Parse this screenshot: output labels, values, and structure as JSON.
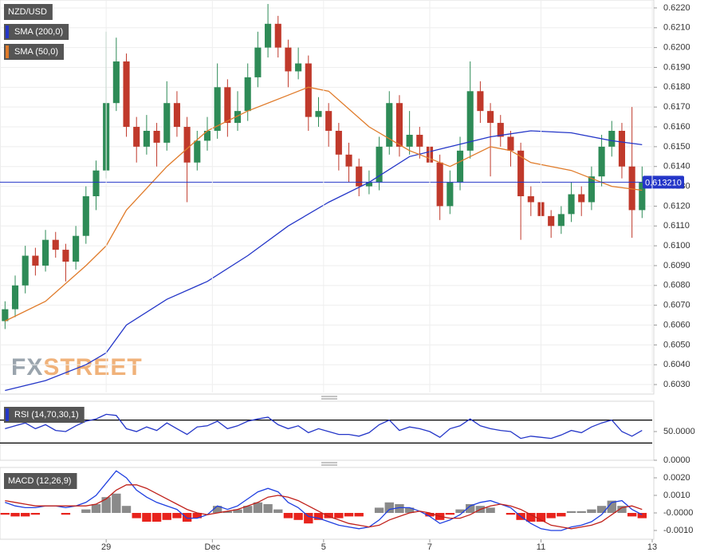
{
  "chart_data": [
    {
      "type": "candlestick",
      "xlim": [
        -0.5,
        64
      ],
      "ylim": [
        0.6026,
        0.6224
      ],
      "yticks": [
        {
          "value": 0.603,
          "label": "0.6030"
        },
        {
          "value": 0.604,
          "label": "0.6040"
        },
        {
          "value": 0.605,
          "label": "0.6050"
        },
        {
          "value": 0.606,
          "label": "0.6060"
        },
        {
          "value": 0.607,
          "label": "0.6070"
        },
        {
          "value": 0.608,
          "label": "0.6080"
        },
        {
          "value": 0.609,
          "label": "0.6090"
        },
        {
          "value": 0.61,
          "label": "0.6100"
        },
        {
          "value": 0.611,
          "label": "0.6110"
        },
        {
          "value": 0.612,
          "label": "0.6120"
        },
        {
          "value": 0.613,
          "label": "0.6130"
        },
        {
          "value": 0.614,
          "label": "0.6140"
        },
        {
          "value": 0.615,
          "label": "0.6150"
        },
        {
          "value": 0.616,
          "label": "0.6160"
        },
        {
          "value": 0.617,
          "label": "0.6170"
        },
        {
          "value": 0.618,
          "label": "0.6180"
        },
        {
          "value": 0.619,
          "label": "0.6190"
        },
        {
          "value": 0.62,
          "label": "0.6200"
        },
        {
          "value": 0.621,
          "label": "0.6210"
        },
        {
          "value": 0.622,
          "label": "0.6220"
        }
      ],
      "grid": true,
      "watermark": [
        "FX",
        "STREET"
      ],
      "last_price": {
        "value": 0.61321,
        "label": "0.613210",
        "color": "#2436c8"
      },
      "series": [
        {
          "name": "NZD/USD",
          "type": "candlestick",
          "color": "#555555",
          "up_color": "#2e8b57",
          "down_color": "#c0392b",
          "values": [
            [
              0.6062,
              0.6072,
              0.6058,
              0.6068
            ],
            [
              0.6068,
              0.6085,
              0.6064,
              0.608
            ],
            [
              0.608,
              0.61,
              0.6076,
              0.6095
            ],
            [
              0.6095,
              0.6099,
              0.6085,
              0.609
            ],
            [
              0.609,
              0.6108,
              0.6087,
              0.6103
            ],
            [
              0.6103,
              0.6107,
              0.6094,
              0.6098
            ],
            [
              0.6098,
              0.6101,
              0.6082,
              0.6092
            ],
            [
              0.6092,
              0.611,
              0.6088,
              0.6105
            ],
            [
              0.6105,
              0.613,
              0.6101,
              0.6125
            ],
            [
              0.6125,
              0.6143,
              0.6118,
              0.6138
            ],
            [
              0.6138,
              0.6208,
              0.6134,
              0.6172
            ],
            [
              0.6172,
              0.6205,
              0.6168,
              0.6193
            ],
            [
              0.6193,
              0.6197,
              0.6155,
              0.616
            ],
            [
              0.616,
              0.6165,
              0.6142,
              0.615
            ],
            [
              0.615,
              0.6166,
              0.6146,
              0.6158
            ],
            [
              0.6158,
              0.6162,
              0.614,
              0.6152
            ],
            [
              0.6152,
              0.6183,
              0.6148,
              0.6172
            ],
            [
              0.6172,
              0.6178,
              0.6155,
              0.616
            ],
            [
              0.616,
              0.6165,
              0.6122,
              0.6142
            ],
            [
              0.6142,
              0.6158,
              0.6138,
              0.6153
            ],
            [
              0.6153,
              0.6165,
              0.6148,
              0.6158
            ],
            [
              0.6158,
              0.6192,
              0.6154,
              0.618
            ],
            [
              0.618,
              0.6184,
              0.6155,
              0.6162
            ],
            [
              0.6162,
              0.6178,
              0.6158,
              0.6168
            ],
            [
              0.6168,
              0.6192,
              0.6163,
              0.6185
            ],
            [
              0.6185,
              0.6208,
              0.618,
              0.62
            ],
            [
              0.62,
              0.6222,
              0.6195,
              0.6212
            ],
            [
              0.6212,
              0.6216,
              0.6195,
              0.62
            ],
            [
              0.62,
              0.6204,
              0.618,
              0.6188
            ],
            [
              0.6188,
              0.62,
              0.6184,
              0.6192
            ],
            [
              0.6192,
              0.6196,
              0.6158,
              0.6165
            ],
            [
              0.6165,
              0.6175,
              0.616,
              0.6168
            ],
            [
              0.6168,
              0.6172,
              0.615,
              0.6158
            ],
            [
              0.6158,
              0.6162,
              0.6138,
              0.6146
            ],
            [
              0.6146,
              0.6152,
              0.6132,
              0.614
            ],
            [
              0.614,
              0.6144,
              0.6125,
              0.613
            ],
            [
              0.613,
              0.6138,
              0.6126,
              0.6132
            ],
            [
              0.6132,
              0.6155,
              0.6128,
              0.615
            ],
            [
              0.615,
              0.6178,
              0.6146,
              0.6172
            ],
            [
              0.6172,
              0.6176,
              0.6145,
              0.615
            ],
            [
              0.615,
              0.6168,
              0.6146,
              0.6156
            ],
            [
              0.6156,
              0.616,
              0.6144,
              0.615
            ],
            [
              0.615,
              0.6164,
              0.6136,
              0.6142
            ],
            [
              0.6142,
              0.6146,
              0.6113,
              0.612
            ],
            [
              0.612,
              0.6138,
              0.6116,
              0.6132
            ],
            [
              0.6132,
              0.6155,
              0.6128,
              0.6148
            ],
            [
              0.6148,
              0.6193,
              0.6144,
              0.6178
            ],
            [
              0.6178,
              0.6183,
              0.6162,
              0.6168
            ],
            [
              0.6168,
              0.6172,
              0.6135,
              0.6162
            ],
            [
              0.6162,
              0.6166,
              0.615,
              0.6155
            ],
            [
              0.6155,
              0.6158,
              0.614,
              0.6148
            ],
            [
              0.6148,
              0.6152,
              0.6103,
              0.6125
            ],
            [
              0.6125,
              0.613,
              0.6115,
              0.6122
            ],
            [
              0.6122,
              0.6126,
              0.6108,
              0.6115
            ],
            [
              0.6115,
              0.6118,
              0.6104,
              0.611
            ],
            [
              0.611,
              0.612,
              0.6106,
              0.6116
            ],
            [
              0.6116,
              0.6132,
              0.6112,
              0.6126
            ],
            [
              0.6126,
              0.613,
              0.6115,
              0.6122
            ],
            [
              0.6122,
              0.614,
              0.6118,
              0.6135
            ],
            [
              0.6135,
              0.6156,
              0.613,
              0.615
            ],
            [
              0.615,
              0.6163,
              0.6145,
              0.6158
            ],
            [
              0.6158,
              0.6162,
              0.6134,
              0.614
            ],
            [
              0.614,
              0.617,
              0.6104,
              0.6118
            ],
            [
              0.6118,
              0.614,
              0.6114,
              0.6132
            ]
          ]
        },
        {
          "name": "SMA (200,0)",
          "type": "line",
          "color": "#2436c8",
          "x": [
            0,
            4,
            8,
            10,
            12,
            16,
            20,
            24,
            28,
            32,
            36,
            40,
            44,
            48,
            52,
            56,
            60,
            63
          ],
          "values": [
            0.6027,
            0.6032,
            0.604,
            0.6046,
            0.606,
            0.6073,
            0.6082,
            0.6095,
            0.611,
            0.6122,
            0.6132,
            0.6145,
            0.615,
            0.6155,
            0.6158,
            0.6157,
            0.6153,
            0.6151
          ]
        },
        {
          "name": "SMA (50,0)",
          "type": "line",
          "color": "#e07b2a",
          "x": [
            0,
            4,
            8,
            10,
            12,
            16,
            20,
            24,
            28,
            30,
            32,
            36,
            40,
            44,
            48,
            50,
            52,
            56,
            60,
            63
          ],
          "values": [
            0.6062,
            0.6072,
            0.609,
            0.61,
            0.6118,
            0.614,
            0.6158,
            0.6168,
            0.6176,
            0.618,
            0.6178,
            0.616,
            0.6148,
            0.614,
            0.615,
            0.6148,
            0.6142,
            0.6138,
            0.613,
            0.6128
          ]
        }
      ]
    },
    {
      "type": "line",
      "xlim": [
        -0.5,
        64
      ],
      "ylim": [
        0,
        100
      ],
      "yticks": [
        {
          "value": 50,
          "label": "50.0000"
        },
        {
          "value": 0,
          "label": "0.0000"
        }
      ],
      "levels": [
        70,
        30
      ],
      "series": [
        {
          "name": "RSI (14,70,30,1)",
          "type": "line",
          "color": "#2436c8",
          "values": [
            55,
            60,
            65,
            55,
            62,
            52,
            50,
            60,
            68,
            72,
            80,
            78,
            55,
            50,
            58,
            52,
            65,
            55,
            45,
            58,
            60,
            68,
            55,
            60,
            68,
            72,
            75,
            62,
            55,
            60,
            48,
            55,
            50,
            45,
            45,
            42,
            48,
            62,
            70,
            52,
            58,
            55,
            50,
            40,
            55,
            60,
            72,
            60,
            55,
            52,
            50,
            38,
            42,
            40,
            38,
            44,
            52,
            48,
            58,
            65,
            70,
            50,
            42,
            52
          ]
        }
      ]
    },
    {
      "type": "macd",
      "title": "MACD (12,26,9)",
      "xlim": [
        -0.5,
        64
      ],
      "xticks": [
        {
          "value": 10,
          "label": "29"
        },
        {
          "value": 20.5,
          "label": "Dec"
        },
        {
          "value": 31.5,
          "label": "5"
        },
        {
          "value": 42,
          "label": "7"
        },
        {
          "value": 53,
          "label": "11"
        },
        {
          "value": 64,
          "label": "13"
        }
      ],
      "ylim": [
        -0.0015,
        0.0025
      ],
      "yticks": [
        {
          "value": 0.002,
          "label": "0.0020"
        },
        {
          "value": 0.001,
          "label": "0.0010"
        },
        {
          "value": 0,
          "label": "-0.0000"
        },
        {
          "value": -0.001,
          "label": "-0.0010"
        }
      ],
      "series": [
        {
          "type": "bar",
          "color": "#8a8a8a",
          "down_color": "#e8231c",
          "values": [
            -0.0001,
            -0.0002,
            -0.0002,
            -0.0001,
            0,
            0,
            -0.0001,
            0,
            0.0002,
            0.0005,
            0.0009,
            0.0011,
            0.0004,
            -0.0003,
            -0.0005,
            -0.0005,
            -0.0004,
            -0.0003,
            -0.0005,
            -0.0003,
            0,
            0.0004,
            0.0001,
            0.0002,
            0.0004,
            0.0006,
            0.0005,
            0.0002,
            -0.0003,
            -0.0004,
            -0.0006,
            -0.0004,
            -0.0003,
            -0.0003,
            -0.0002,
            -0.0002,
            0,
            0.0003,
            0.0006,
            0.0005,
            0.0003,
            0,
            -0.0002,
            -0.0004,
            -0.0001,
            0.0002,
            0.0005,
            0.0004,
            0.0003,
            0,
            -0.0001,
            -0.0004,
            -0.0005,
            -0.0005,
            -0.0003,
            -0.0002,
            0.0001,
            0.0001,
            0.0002,
            0.0004,
            0.0007,
            0.0004,
            -0.0002,
            -0.0003
          ]
        },
        {
          "type": "line",
          "color": "#1f3fe0",
          "values": [
            0.0006,
            0.0004,
            0.0003,
            0.0003,
            0.0004,
            0.0004,
            0.0003,
            0.0004,
            0.0006,
            0.001,
            0.0017,
            0.0024,
            0.002,
            0.0013,
            0.0009,
            0.0006,
            0.0004,
            0.0002,
            -0.0003,
            -0.0003,
            -0.0001,
            0.0004,
            0.0002,
            0.0004,
            0.0008,
            0.0012,
            0.0014,
            0.0012,
            0.0006,
            0.0003,
            -0.0002,
            -0.0003,
            -0.0005,
            -0.0007,
            -0.0008,
            -0.0009,
            -0.0008,
            -0.0004,
            0.0002,
            0.0003,
            0.0003,
            0.0001,
            -0.0002,
            -0.0006,
            -0.0004,
            -0.0001,
            0.0004,
            0.0006,
            0.0007,
            0.0005,
            0.0003,
            -0.0002,
            -0.0006,
            -0.0009,
            -0.001,
            -0.001,
            -0.0008,
            -0.0007,
            -0.0005,
            -0.0001,
            0.0006,
            0.0007,
            0.0002,
            -0.0001
          ]
        },
        {
          "type": "line",
          "color": "#c0201a",
          "values": [
            0.0007,
            0.0006,
            0.0005,
            0.0004,
            0.0004,
            0.0004,
            0.0004,
            0.0004,
            0.0004,
            0.0005,
            0.0008,
            0.0013,
            0.0016,
            0.0016,
            0.0014,
            0.0011,
            0.0008,
            0.0005,
            0.0002,
            0,
            -0.0001,
            0,
            0.0001,
            0.0002,
            0.0004,
            0.0006,
            0.0009,
            0.001,
            0.0009,
            0.0007,
            0.0004,
            0.0001,
            -0.0002,
            -0.0004,
            -0.0006,
            -0.0007,
            -0.0008,
            -0.0007,
            -0.0004,
            -0.0002,
            0,
            0.0001,
            0,
            -0.0002,
            -0.0003,
            -0.0003,
            -0.0001,
            0.0002,
            0.0004,
            0.0005,
            0.0004,
            0.0002,
            -0.0001,
            -0.0004,
            -0.0007,
            -0.0008,
            -0.0009,
            -0.0008,
            -0.0007,
            -0.0005,
            -0.0001,
            0.0003,
            0.0004,
            0.0002
          ]
        }
      ]
    }
  ]
}
